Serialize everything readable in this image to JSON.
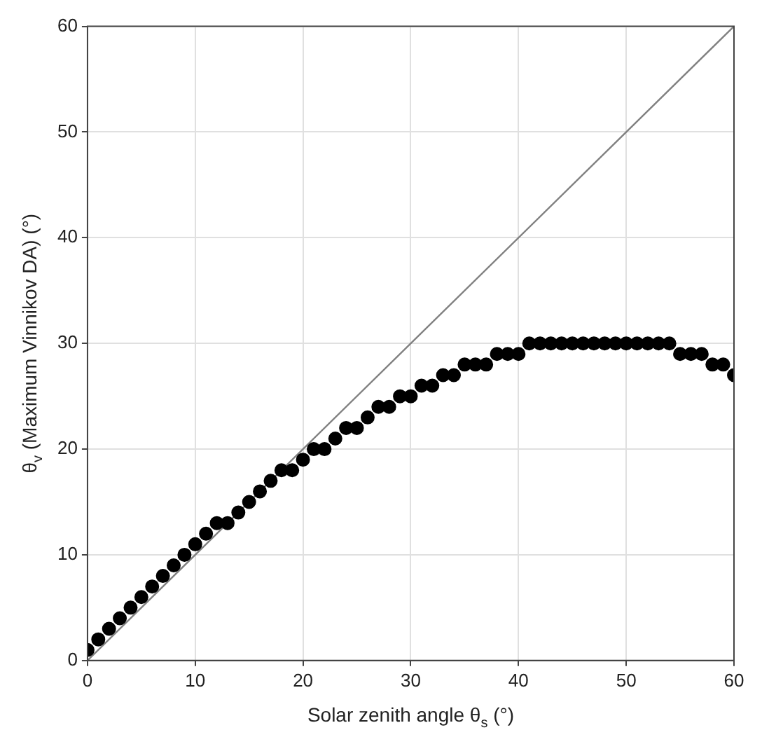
{
  "chart_data": {
    "type": "scatter",
    "xlabel": "Solar zenith angle θ$_{s}$ (°)",
    "ylabel": "θ$_{v}$ (Maximum Vinnikov DA) (°)",
    "xlim": [
      0,
      60
    ],
    "ylim": [
      0,
      60
    ],
    "xticks": [
      0,
      10,
      20,
      30,
      40,
      50,
      60
    ],
    "yticks": [
      0,
      10,
      20,
      30,
      40,
      50,
      60
    ],
    "grid": true,
    "legend": false,
    "marker": "circle",
    "series": [
      {
        "color": "#000000",
        "x": [
          0,
          1,
          2,
          3,
          4,
          5,
          6,
          7,
          8,
          9,
          10,
          11,
          12,
          13,
          14,
          15,
          16,
          17,
          18,
          19,
          20,
          21,
          22,
          23,
          24,
          25,
          26,
          27,
          28,
          29,
          30,
          31,
          32,
          33,
          34,
          35,
          36,
          37,
          38,
          39,
          40,
          41,
          42,
          43,
          44,
          45,
          46,
          47,
          48,
          49,
          50,
          51,
          52,
          53,
          54,
          55,
          56,
          57,
          58,
          59,
          60
        ],
        "values": [
          1,
          2,
          3,
          4,
          5,
          6,
          7,
          8,
          9,
          10,
          11,
          12,
          13,
          13,
          14,
          15,
          16,
          17,
          18,
          18,
          19,
          20,
          20,
          21,
          22,
          22,
          23,
          24,
          24,
          25,
          25,
          26,
          26,
          27,
          27,
          28,
          28,
          28,
          29,
          29,
          29,
          30,
          30,
          30,
          30,
          30,
          30,
          30,
          30,
          30,
          30,
          30,
          30,
          30,
          30,
          29,
          29,
          29,
          28,
          28,
          27
        ]
      },
      {
        "type": "line",
        "color": "#808080",
        "marker": "none",
        "x": [
          0,
          60
        ],
        "values": [
          0,
          60
        ]
      }
    ]
  }
}
